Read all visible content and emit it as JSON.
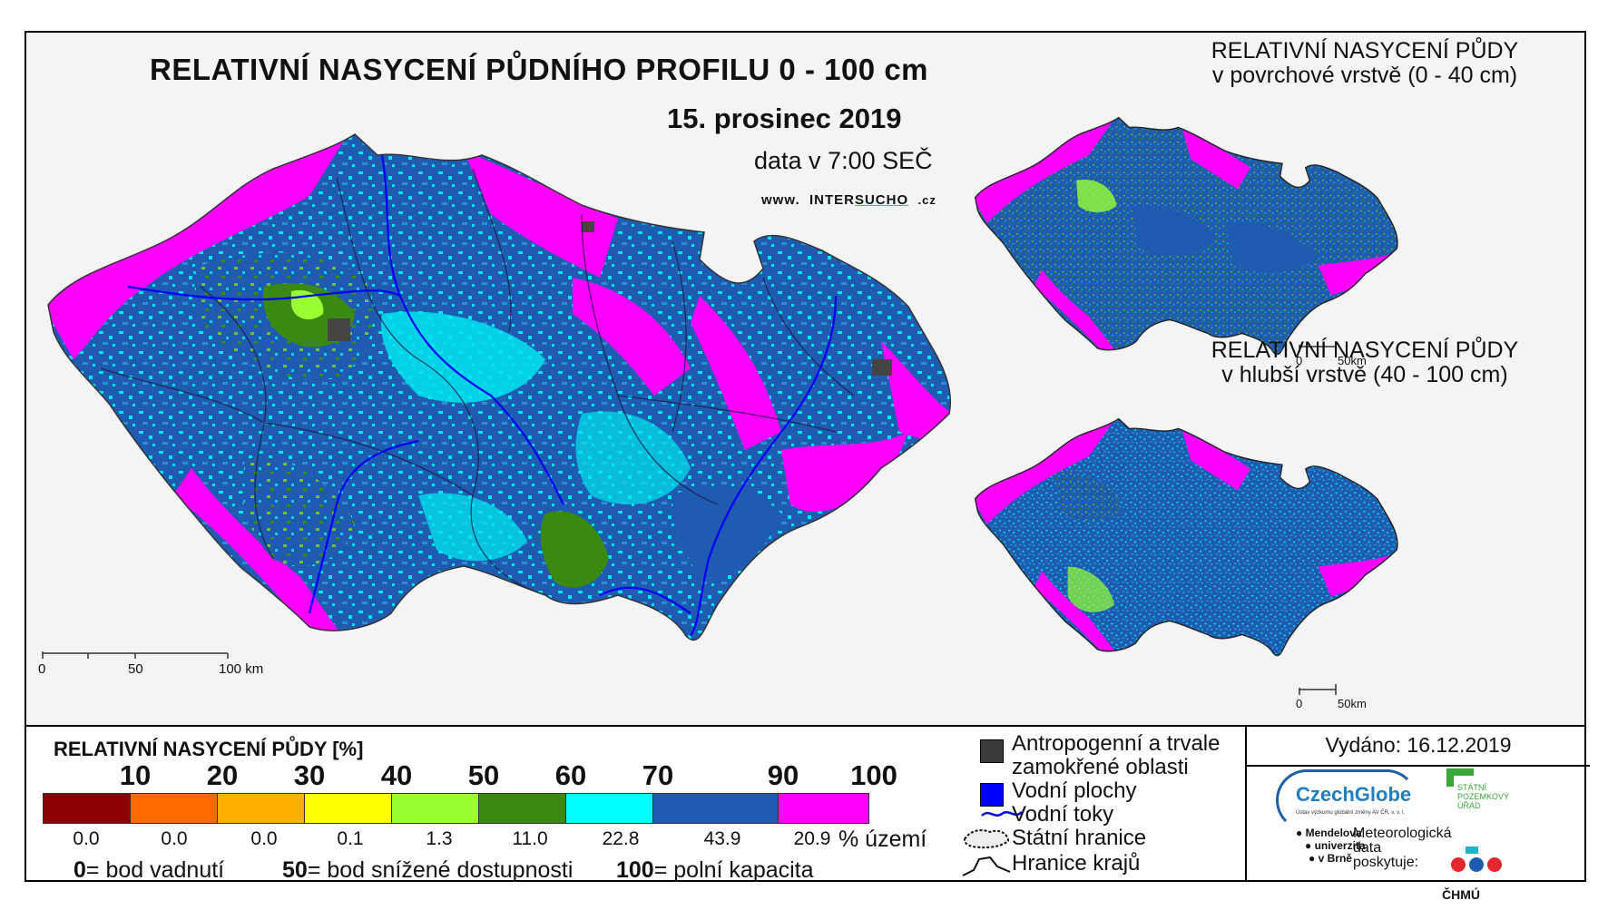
{
  "title": "RELATIVNÍ NASYCENÍ PŮDNÍHO PROFILU 0 - 100 cm",
  "date": "15. prosinec 2019",
  "data_time": "data v 7:00 SEČ",
  "website": {
    "prefix": "www.",
    "name_a": "INTER",
    "name_b": "SUCHO",
    "suffix": ".cz"
  },
  "main_scale": {
    "labels": [
      "0",
      "50",
      "100 km"
    ]
  },
  "inset_top": {
    "title_line1": "RELATIVNÍ NASYCENÍ PŮDY",
    "title_line2": "v povrchové vrstvě (0 - 40 cm)",
    "scale_labels": [
      "0",
      "50km"
    ]
  },
  "inset_bottom": {
    "title_line1": "RELATIVNÍ NASYCENÍ PŮDY",
    "title_line2": "v hlubší vrstvě (40 - 100 cm)",
    "scale_labels": [
      "0",
      "50km"
    ]
  },
  "legend": {
    "title": "RELATIVNÍ NASYCENÍ PŮDY [%]",
    "breaks": [
      "10",
      "20",
      "30",
      "40",
      "50",
      "60",
      "70",
      "90",
      "100"
    ],
    "classes": [
      {
        "color": "#8b0000",
        "percent_area": "0.0"
      },
      {
        "color": "#ff6a00",
        "percent_area": "0.0"
      },
      {
        "color": "#ffb000",
        "percent_area": "0.0"
      },
      {
        "color": "#ffff00",
        "percent_area": "0.1"
      },
      {
        "color": "#99ff33",
        "percent_area": "1.3"
      },
      {
        "color": "#3a8a12",
        "percent_area": "11.0"
      },
      {
        "color": "#00ffff",
        "percent_area": "22.8"
      },
      {
        "color": "#1f5bb0",
        "percent_area": "43.9"
      },
      {
        "color": "#ff00ff",
        "percent_area": "20.9"
      }
    ],
    "unit": "% území",
    "notes": [
      {
        "value": "0",
        "text": "= bod vadnutí"
      },
      {
        "value": "50",
        "text": "= bod snížené dostupnosti"
      },
      {
        "value": "100",
        "text": "= polní kapacita"
      }
    ]
  },
  "symbol_key": {
    "anthropogenic": "Antropogenní a trvale",
    "anthropogenic_2": "zamokřené oblasti",
    "water_bodies": "Vodní plochy",
    "rivers": "Vodní toky",
    "state_border": "Státní hranice",
    "region_border": "Hranice krajů"
  },
  "issued": "Vydáno: 16.12.2019",
  "logos": {
    "czechglobe": "CzechGlobe",
    "czechglobe_sub": "Ústav výzkumu globální změny AV ČR, v. v. i.",
    "spu": "STÁTNÍ POZEMKOVÝ ÚŘAD",
    "mendel": [
      "Mendelova",
      "univerzita",
      "v Brně"
    ],
    "meteo": [
      "Meteorologická",
      "data",
      "poskytuje:"
    ],
    "chmu": "ČHMÚ"
  }
}
